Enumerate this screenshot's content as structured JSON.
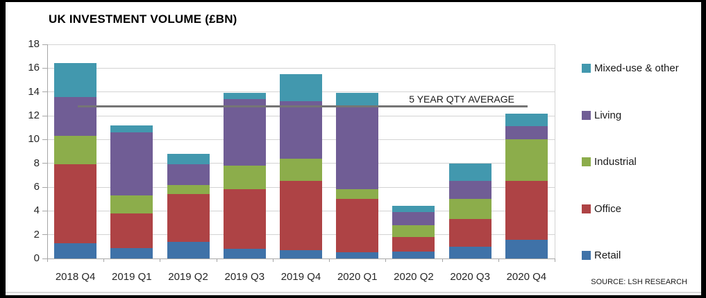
{
  "window": {
    "title": "UK INVESTMENT VOLUME (£BN)",
    "source": "SOURCE: LSH RESEARCH"
  },
  "colors": {
    "retail": "#3F72A8",
    "office": "#AE4345",
    "industrial": "#8CAD4B",
    "living": "#705D95",
    "mixed_use": "#4298AE",
    "average_line": "#757575",
    "gridline": "#D3D3D3",
    "axis": "#A6A6A6"
  },
  "chart_data": {
    "type": "bar",
    "stacked": true,
    "title": "UK INVESTMENT VOLUME (£BN)",
    "categories": [
      "2018 Q4",
      "2019 Q1",
      "2019 Q2",
      "2019 Q3",
      "2019 Q4",
      "2020 Q1",
      "2020 Q2",
      "2020 Q3",
      "2020 Q4"
    ],
    "series": [
      {
        "name": "Retail",
        "color": "#3F72A8",
        "values": [
          1.3,
          0.9,
          1.4,
          0.8,
          0.7,
          0.5,
          0.6,
          1.0,
          1.6
        ]
      },
      {
        "name": "Office",
        "color": "#AE4345",
        "values": [
          6.6,
          2.9,
          4.0,
          5.0,
          5.8,
          4.5,
          1.2,
          2.3,
          4.9
        ]
      },
      {
        "name": "Industrial",
        "color": "#8CAD4B",
        "values": [
          2.4,
          1.5,
          0.8,
          2.0,
          1.9,
          0.8,
          1.0,
          1.7,
          3.5
        ]
      },
      {
        "name": "Living",
        "color": "#705D95",
        "values": [
          3.3,
          5.3,
          1.7,
          5.6,
          4.8,
          6.9,
          1.1,
          1.5,
          1.1
        ]
      },
      {
        "name": "Mixed-use & other",
        "color": "#4298AE",
        "values": [
          2.8,
          0.6,
          0.9,
          0.5,
          2.3,
          1.2,
          0.5,
          1.5,
          1.1
        ]
      }
    ],
    "totals": [
      16.4,
      11.2,
      8.8,
      13.9,
      15.5,
      13.9,
      4.4,
      8.0,
      12.2
    ],
    "average_line": {
      "label": "5 YEAR QTY AVERAGE",
      "value": 12.8
    },
    "ylim": [
      0,
      18
    ],
    "ytick_step": 2,
    "grid": true,
    "legend_position": "right",
    "legend_order": [
      "Mixed-use & other",
      "Living",
      "Industrial",
      "Office",
      "Retail"
    ]
  }
}
